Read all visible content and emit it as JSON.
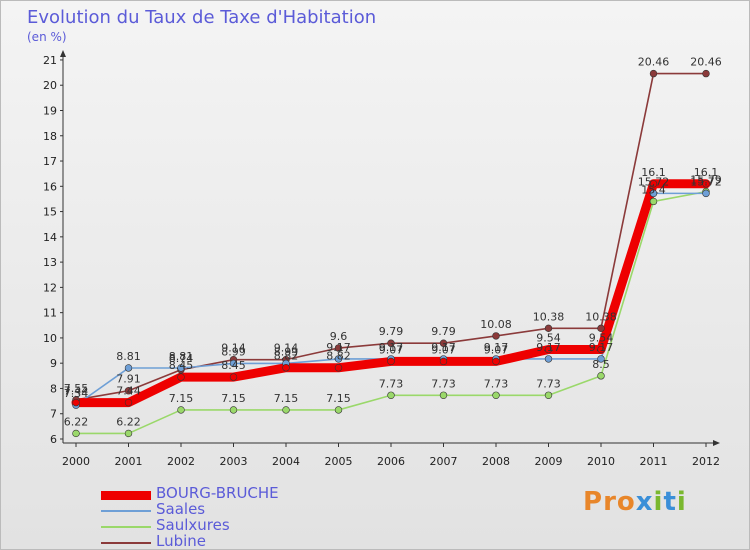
{
  "title": "Evolution du Taux de Taxe d'Habitation",
  "subtitle": "(en %)",
  "logo": {
    "letters": [
      "P",
      "r",
      "o",
      "x",
      "i",
      "t",
      "i"
    ],
    "colors": [
      "#e8862a",
      "#e8862a",
      "#e8862a",
      "#3a8fd8",
      "#7ab82f",
      "#3a8fd8",
      "#7ab82f"
    ]
  },
  "chart_data": {
    "type": "line",
    "title": "Evolution du Taux de Taxe d'Habitation",
    "ylabel": "(en %)",
    "xlabel": "",
    "ylim": [
      6,
      21
    ],
    "yticks": [
      "6",
      "7",
      "8",
      "9",
      "10",
      "11",
      "12",
      "13",
      "14",
      "15",
      "16",
      "17",
      "18",
      "19",
      "20",
      "21"
    ],
    "categories": [
      "2000",
      "2001",
      "2002",
      "2003",
      "2004",
      "2005",
      "2006",
      "2007",
      "2008",
      "2009",
      "2010",
      "2011",
      "2012"
    ],
    "legend_position": "bottom-left",
    "series": [
      {
        "name": "BOURG-BRUCHE",
        "color": "#ee0000",
        "values": [
          7.44,
          7.44,
          8.45,
          8.45,
          8.82,
          8.82,
          9.07,
          9.07,
          9.07,
          9.54,
          9.54,
          16.1,
          16.1
        ],
        "labels": [
          "7.44",
          "7.44",
          "8.45",
          "8.45",
          "8.82",
          "8.82",
          "9.07",
          "9.07",
          "9.07",
          "9.54",
          "9.54",
          "16.1",
          "16.1"
        ]
      },
      {
        "name": "Saales",
        "color": "#6e9fd6",
        "values": [
          7.34,
          8.81,
          8.81,
          8.99,
          8.99,
          9.17,
          9.17,
          9.17,
          9.17,
          9.17,
          9.17,
          15.72,
          15.72
        ],
        "labels": [
          "7.34",
          "8.81",
          "8.81",
          "8.99",
          "8.99",
          "9.17",
          "9.17",
          "9.17",
          "9.17",
          "9.17",
          "9.17",
          "15.72",
          "15.72"
        ]
      },
      {
        "name": "Saulxures",
        "color": "#9ad86a",
        "values": [
          6.22,
          6.22,
          7.15,
          7.15,
          7.15,
          7.15,
          7.73,
          7.73,
          7.73,
          7.73,
          8.5,
          15.4,
          15.79
        ],
        "labels": [
          "6.22",
          "6.22",
          "7.15",
          "7.15",
          "7.15",
          "7.15",
          "7.73",
          "7.73",
          "7.73",
          "7.73",
          "8.5",
          "15.4",
          "15.79"
        ]
      },
      {
        "name": "Lubine",
        "color": "#8b3a3a",
        "values": [
          7.55,
          7.91,
          8.74,
          9.14,
          9.14,
          9.6,
          9.79,
          9.79,
          10.08,
          10.38,
          10.38,
          20.46,
          20.46
        ],
        "labels": [
          "7.55",
          "7.91",
          "8.74",
          "9.14",
          "9.14",
          "9.6",
          "9.79",
          "9.79",
          "10.08",
          "10.38",
          "10.38",
          "20.46",
          "20.46"
        ]
      }
    ]
  }
}
